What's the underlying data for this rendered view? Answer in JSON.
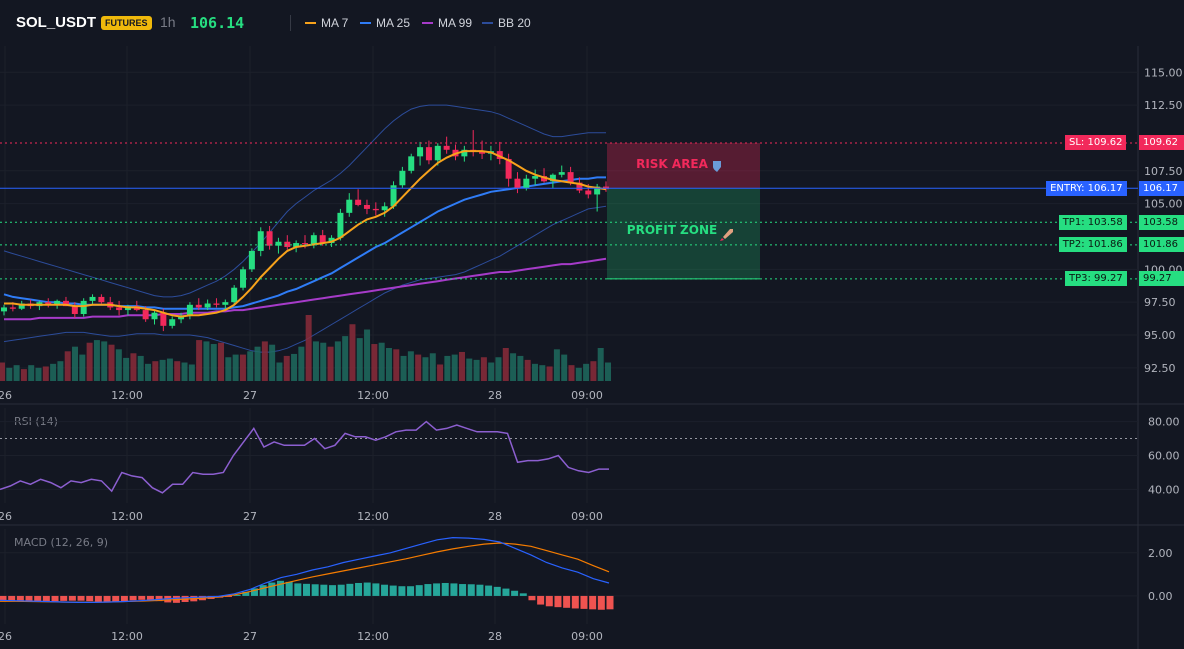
{
  "header": {
    "symbol": "SOL_USDT",
    "badge": "FUTURES",
    "interval": "1h",
    "last_price": "106.14",
    "legend": [
      {
        "label": "MA 7",
        "color": "#f7a21b"
      },
      {
        "label": "MA 25",
        "color": "#2f7cf6"
      },
      {
        "label": "MA 99",
        "color": "#a63bc9"
      },
      {
        "label": "BB 20",
        "color": "#2c4c9a"
      }
    ]
  },
  "zones": {
    "risk_label": "RISK AREA",
    "risk_icon": "shield-icon",
    "profit_label": "PROFIT ZONE",
    "profit_icon": "rocket-icon"
  },
  "levels": [
    {
      "label": "SL: 109.62",
      "value_label": "109.62",
      "price": 109.62,
      "color": "#f2295b",
      "style": "dotted"
    },
    {
      "label": "ENTRY: 106.17",
      "value_label": "106.17",
      "price": 106.17,
      "color": "#2962ff",
      "style": "solid"
    },
    {
      "label": "TP1: 103.58",
      "value_label": "103.58",
      "price": 103.58,
      "color": "#26de81",
      "style": "dotted"
    },
    {
      "label": "TP2: 101.86",
      "value_label": "101.86",
      "price": 101.86,
      "color": "#26de81",
      "style": "dotted"
    },
    {
      "label": "TP3: 99.27",
      "value_label": "99.27",
      "price": 99.27,
      "color": "#26de81",
      "style": "dotted"
    }
  ],
  "chart_data": [
    {
      "type": "candlestick",
      "title": "",
      "x_tick_labels": [
        "26",
        "12:00",
        "27",
        "12:00",
        "28",
        "09:00"
      ],
      "y_tick_labels": [
        "115.00",
        "112.50",
        "107.50",
        "105.00",
        "100.00",
        "97.50",
        "95.00",
        "92.50"
      ],
      "ylim": [
        91.5,
        117
      ],
      "candles": [
        [
          96.8,
          97.3,
          96.5,
          97.1
        ],
        [
          97.1,
          97.5,
          96.8,
          97.0
        ],
        [
          97.0,
          97.6,
          96.9,
          97.4
        ],
        [
          97.4,
          97.7,
          97.0,
          97.2
        ],
        [
          97.2,
          97.6,
          96.9,
          97.5
        ],
        [
          97.5,
          97.8,
          97.1,
          97.3
        ],
        [
          97.3,
          97.7,
          97.0,
          97.6
        ],
        [
          97.6,
          97.9,
          97.2,
          97.2
        ],
        [
          97.2,
          97.5,
          96.3,
          96.6
        ],
        [
          96.6,
          97.8,
          96.4,
          97.6
        ],
        [
          97.6,
          98.1,
          97.3,
          97.9
        ],
        [
          97.9,
          98.1,
          97.4,
          97.5
        ],
        [
          97.5,
          97.9,
          96.9,
          97.1
        ],
        [
          97.1,
          97.6,
          96.5,
          96.9
        ],
        [
          96.9,
          97.3,
          96.5,
          97.2
        ],
        [
          97.2,
          97.6,
          96.8,
          96.9
        ],
        [
          96.9,
          97.2,
          96.0,
          96.2
        ],
        [
          96.2,
          96.9,
          95.8,
          96.7
        ],
        [
          96.7,
          97.0,
          95.3,
          95.7
        ],
        [
          95.7,
          96.4,
          95.5,
          96.2
        ],
        [
          96.2,
          96.7,
          95.9,
          96.5
        ],
        [
          96.5,
          97.5,
          96.2,
          97.3
        ],
        [
          97.3,
          97.8,
          96.9,
          97.1
        ],
        [
          97.1,
          97.7,
          96.9,
          97.4
        ],
        [
          97.4,
          97.8,
          97.1,
          97.3
        ],
        [
          97.3,
          97.7,
          96.9,
          97.5
        ],
        [
          97.5,
          98.8,
          97.3,
          98.6
        ],
        [
          98.6,
          100.2,
          98.4,
          100.0
        ],
        [
          100.0,
          101.6,
          99.8,
          101.4
        ],
        [
          101.4,
          103.2,
          101.0,
          102.9
        ],
        [
          102.9,
          103.3,
          101.5,
          101.8
        ],
        [
          101.8,
          102.4,
          101.2,
          102.1
        ],
        [
          102.1,
          102.6,
          101.5,
          101.7
        ],
        [
          101.7,
          102.2,
          101.3,
          102.0
        ],
        [
          102.0,
          102.6,
          101.6,
          101.9
        ],
        [
          101.9,
          102.8,
          101.6,
          102.6
        ],
        [
          102.6,
          103.0,
          101.8,
          102.0
        ],
        [
          102.0,
          102.6,
          101.7,
          102.4
        ],
        [
          102.4,
          104.6,
          102.2,
          104.3
        ],
        [
          104.3,
          105.8,
          104.0,
          105.3
        ],
        [
          105.3,
          106.1,
          104.8,
          104.9
        ],
        [
          104.9,
          105.3,
          104.2,
          104.6
        ],
        [
          104.6,
          105.1,
          104.1,
          104.5
        ],
        [
          104.5,
          105.1,
          104.0,
          104.8
        ],
        [
          104.8,
          106.7,
          104.6,
          106.4
        ],
        [
          106.4,
          107.8,
          106.2,
          107.5
        ],
        [
          107.5,
          108.8,
          107.3,
          108.6
        ],
        [
          108.6,
          109.7,
          107.9,
          109.3
        ],
        [
          109.3,
          109.8,
          108.0,
          108.3
        ],
        [
          108.3,
          109.6,
          107.9,
          109.4
        ],
        [
          109.4,
          110.1,
          108.8,
          109.1
        ],
        [
          109.1,
          109.5,
          108.3,
          108.6
        ],
        [
          108.6,
          109.4,
          108.2,
          109.1
        ],
        [
          109.1,
          110.6,
          108.6,
          109.0
        ],
        [
          109.0,
          109.8,
          108.4,
          108.8
        ],
        [
          108.8,
          109.4,
          108.3,
          109.0
        ],
        [
          109.0,
          109.7,
          108.0,
          108.4
        ],
        [
          108.4,
          108.8,
          106.3,
          106.9
        ],
        [
          106.9,
          107.4,
          105.8,
          106.2
        ],
        [
          106.2,
          107.2,
          106.0,
          106.9
        ],
        [
          106.9,
          107.6,
          106.4,
          107.1
        ],
        [
          107.1,
          107.7,
          106.6,
          106.7
        ],
        [
          106.7,
          107.3,
          106.2,
          107.2
        ],
        [
          107.2,
          107.9,
          107.0,
          107.4
        ],
        [
          107.4,
          107.8,
          106.4,
          106.6
        ],
        [
          106.6,
          107.0,
          105.8,
          106.0
        ],
        [
          106.0,
          106.5,
          105.4,
          105.7
        ],
        [
          105.7,
          106.5,
          104.4,
          106.3
        ],
        [
          106.3,
          106.7,
          105.9,
          106.1
        ]
      ],
      "ma7": [
        97.4,
        97.4,
        97.3,
        97.3,
        97.3,
        97.3,
        97.3,
        97.3,
        97.2,
        97.2,
        97.3,
        97.3,
        97.3,
        97.2,
        97.1,
        97.1,
        97.0,
        96.9,
        96.7,
        96.5,
        96.4,
        96.5,
        96.5,
        96.6,
        96.7,
        96.9,
        97.3,
        97.9,
        98.6,
        99.4,
        100.1,
        100.8,
        101.4,
        101.7,
        101.8,
        101.9,
        102.0,
        102.1,
        102.4,
        102.9,
        103.4,
        103.8,
        104.0,
        104.3,
        104.8,
        105.5,
        106.2,
        106.9,
        107.5,
        108.1,
        108.5,
        108.8,
        109.0,
        109.0,
        109.0,
        108.9,
        108.6,
        108.3,
        107.9,
        107.5,
        107.2,
        107.0,
        106.8,
        106.7,
        106.6,
        106.5,
        106.3,
        106.2,
        106.1
      ],
      "ma25": [
        98.1,
        97.9,
        97.8,
        97.7,
        97.6,
        97.5,
        97.5,
        97.4,
        97.4,
        97.3,
        97.3,
        97.3,
        97.3,
        97.2,
        97.2,
        97.2,
        97.1,
        97.1,
        97.0,
        97.0,
        97.0,
        97.0,
        97.0,
        97.0,
        97.0,
        97.0,
        97.1,
        97.2,
        97.4,
        97.6,
        97.8,
        98.0,
        98.3,
        98.5,
        98.8,
        99.1,
        99.4,
        99.7,
        100.1,
        100.5,
        100.9,
        101.3,
        101.7,
        102.0,
        102.4,
        102.8,
        103.2,
        103.6,
        104.0,
        104.4,
        104.7,
        105.0,
        105.3,
        105.5,
        105.7,
        105.9,
        106.0,
        106.1,
        106.2,
        106.3,
        106.4,
        106.5,
        106.6,
        106.7,
        106.8,
        106.9,
        106.9,
        107.0,
        107.0
      ],
      "ma99": [
        96.2,
        96.2,
        96.2,
        96.2,
        96.3,
        96.3,
        96.3,
        96.3,
        96.3,
        96.3,
        96.4,
        96.4,
        96.4,
        96.4,
        96.5,
        96.5,
        96.5,
        96.5,
        96.6,
        96.6,
        96.6,
        96.7,
        96.7,
        96.7,
        96.8,
        96.8,
        96.9,
        96.9,
        97.0,
        97.1,
        97.2,
        97.3,
        97.4,
        97.5,
        97.6,
        97.7,
        97.8,
        97.9,
        98.0,
        98.1,
        98.2,
        98.3,
        98.4,
        98.5,
        98.6,
        98.7,
        98.8,
        98.9,
        99.0,
        99.1,
        99.2,
        99.3,
        99.4,
        99.5,
        99.6,
        99.7,
        99.8,
        99.8,
        99.9,
        100.0,
        100.1,
        100.2,
        100.3,
        100.4,
        100.4,
        100.5,
        100.6,
        100.7,
        100.8
      ],
      "bb_upper": [
        101.4,
        101.2,
        101.0,
        100.8,
        100.6,
        100.4,
        100.2,
        100.0,
        99.8,
        99.6,
        99.4,
        99.2,
        99.0,
        98.8,
        98.6,
        98.4,
        98.2,
        98.0,
        97.9,
        97.9,
        98.0,
        98.2,
        98.5,
        98.8,
        99.1,
        99.5,
        100.0,
        100.6,
        101.3,
        102.0,
        102.8,
        103.6,
        104.4,
        105.0,
        105.5,
        106.0,
        106.4,
        106.8,
        107.3,
        107.9,
        108.6,
        109.3,
        110.0,
        110.7,
        111.3,
        111.8,
        112.2,
        112.4,
        112.5,
        112.5,
        112.5,
        112.4,
        112.3,
        112.2,
        112.1,
        112.0,
        111.8,
        111.5,
        111.2,
        110.9,
        110.6,
        110.3,
        110.1,
        110.1,
        110.2,
        110.3,
        110.4,
        110.4,
        110.4
      ],
      "bb_lower": [
        94.5,
        94.6,
        94.7,
        94.8,
        94.9,
        95.0,
        95.1,
        95.2,
        95.2,
        95.2,
        95.1,
        95.0,
        94.9,
        94.9,
        95.0,
        95.1,
        95.1,
        95.1,
        95.0,
        95.0,
        95.0,
        95.0,
        94.9,
        94.8,
        94.6,
        94.4,
        94.2,
        94.0,
        93.8,
        93.7,
        93.7,
        93.8,
        94.0,
        94.3,
        94.6,
        95.0,
        95.4,
        95.8,
        96.2,
        96.6,
        97.0,
        97.4,
        97.8,
        98.2,
        98.5,
        98.8,
        99.0,
        99.2,
        99.3,
        99.4,
        99.5,
        99.6,
        99.8,
        100.1,
        100.4,
        100.7,
        101.0,
        101.4,
        101.8,
        102.2,
        102.6,
        103.0,
        103.4,
        103.7,
        104.0,
        104.3,
        104.6,
        104.7,
        104.8
      ],
      "volume": [
        28,
        20,
        24,
        18,
        24,
        20,
        22,
        26,
        30,
        45,
        52,
        40,
        58,
        62,
        60,
        55,
        48,
        35,
        42,
        38,
        26,
        30,
        32,
        34,
        30,
        28,
        25,
        62,
        60,
        56,
        58,
        36,
        40,
        40,
        45,
        52,
        60,
        55,
        28,
        38,
        41,
        52,
        100,
        60,
        58,
        52,
        60,
        68,
        86,
        65,
        78,
        56,
        58,
        50,
        48,
        38,
        45,
        40,
        36,
        42,
        25,
        38,
        40,
        44,
        34,
        32,
        36,
        28,
        36,
        50,
        42,
        38,
        32,
        26,
        24,
        22,
        48,
        40,
        24,
        20,
        26,
        30,
        50,
        28
      ]
    },
    {
      "type": "line",
      "title": "RSI (14)",
      "x_tick_labels": [
        "26",
        "12:00",
        "27",
        "12:00",
        "28",
        "09:00"
      ],
      "y_tick_labels": [
        "80.00",
        "60.00",
        "40.00"
      ],
      "ylim": [
        32,
        88
      ],
      "overbought": 70,
      "values": [
        40,
        42,
        45,
        43,
        46,
        44,
        41,
        45,
        44,
        46,
        45,
        39,
        50,
        48,
        47,
        41,
        38,
        43,
        43,
        50,
        49,
        49,
        50,
        60,
        68,
        76,
        65,
        68,
        66,
        66,
        66,
        70,
        64,
        66,
        73,
        71,
        71,
        69,
        71,
        74,
        75,
        75,
        80,
        75,
        76,
        78,
        76,
        74,
        74,
        74,
        73,
        56,
        57,
        57,
        58,
        60,
        53,
        51,
        50,
        52,
        52
      ]
    },
    {
      "type": "bar",
      "title": "MACD (12, 26, 9)",
      "x_tick_labels": [
        "26",
        "12:00",
        "27",
        "12:00",
        "28",
        "09:00"
      ],
      "y_tick_labels": [
        "2.00",
        "0.00"
      ],
      "ylim": [
        -1.3,
        3.1
      ],
      "hist": [
        -0.2,
        -0.22,
        -0.25,
        -0.27,
        -0.28,
        -0.26,
        -0.25,
        -0.23,
        -0.22,
        -0.22,
        -0.24,
        -0.26,
        -0.28,
        -0.27,
        -0.25,
        -0.2,
        -0.18,
        -0.2,
        -0.24,
        -0.3,
        -0.32,
        -0.28,
        -0.25,
        -0.2,
        -0.14,
        -0.08,
        -0.03,
        0.05,
        0.18,
        0.35,
        0.5,
        0.62,
        0.7,
        0.65,
        0.58,
        0.56,
        0.54,
        0.52,
        0.5,
        0.52,
        0.56,
        0.6,
        0.62,
        0.58,
        0.52,
        0.48,
        0.45,
        0.45,
        0.5,
        0.55,
        0.58,
        0.6,
        0.58,
        0.55,
        0.54,
        0.52,
        0.48,
        0.42,
        0.34,
        0.24,
        0.12,
        -0.2,
        -0.4,
        -0.48,
        -0.52,
        -0.55,
        -0.58,
        -0.6,
        -0.62,
        -0.64,
        -0.62
      ],
      "macd": [
        -0.2,
        -0.22,
        -0.24,
        -0.26,
        -0.28,
        -0.3,
        -0.3,
        -0.28,
        -0.26,
        -0.22,
        -0.17,
        -0.12,
        -0.08,
        -0.05,
        -0.02,
        0.1,
        0.3,
        0.6,
        0.85,
        1.0,
        1.2,
        1.35,
        1.55,
        1.7,
        1.85,
        2.0,
        2.2,
        2.4,
        2.6,
        2.7,
        2.68,
        2.62,
        2.5,
        2.2,
        1.9,
        1.55,
        1.3,
        1.1,
        0.8,
        0.6
      ],
      "signal": [
        -0.25,
        -0.25,
        -0.26,
        -0.27,
        -0.28,
        -0.29,
        -0.29,
        -0.28,
        -0.26,
        -0.24,
        -0.21,
        -0.18,
        -0.14,
        -0.1,
        -0.05,
        0.05,
        0.2,
        0.38,
        0.55,
        0.72,
        0.88,
        1.02,
        1.16,
        1.3,
        1.44,
        1.58,
        1.72,
        1.88,
        2.04,
        2.18,
        2.3,
        2.4,
        2.45,
        2.4,
        2.3,
        2.1,
        1.9,
        1.7,
        1.4,
        1.12
      ]
    }
  ]
}
